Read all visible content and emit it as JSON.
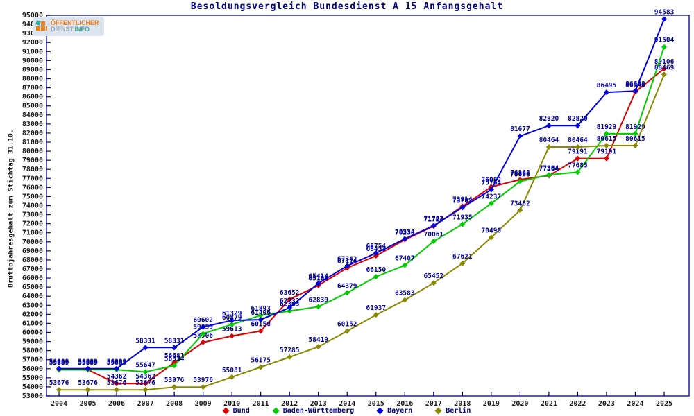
{
  "title": "Besoldungsvergleich Bundesdienst A 15 Anfangsgehalt",
  "logo": {
    "line1": "ÖFFENTLICHER",
    "line2a": "DIENST.",
    "line2b": "INFO"
  },
  "chart_data": {
    "type": "line",
    "title": "Besoldungsvergleich Bundesdienst A 15 Anfangsgehalt",
    "xlabel": "",
    "ylabel": "Bruttojahresgehalt zum Stichtag 31.10.",
    "ylim": [
      53000,
      95000
    ],
    "ytick_step": 1000,
    "grid": false,
    "legend_position": "bottom",
    "point_labels": true,
    "x": [
      2004,
      2005,
      2006,
      2007,
      2008,
      2009,
      2010,
      2011,
      2012,
      2013,
      2014,
      2015,
      2016,
      2017,
      2018,
      2019,
      2020,
      2021,
      2022,
      2023,
      2024,
      2025
    ],
    "series": [
      {
        "name": "Bund",
        "color": "#dd0000",
        "values": [
          55889,
          55889,
          54362,
          54362,
          56681,
          58906,
          59613,
          60150,
          63652,
          65186,
          67114,
          68453,
          70238,
          71724,
          73914,
          76062,
          76868,
          77304,
          79191,
          79191,
          86548,
          89106
        ]
      },
      {
        "name": "Baden-Württemberg",
        "color": "#00cc00",
        "values": [
          55889,
          55889,
          55889,
          55647,
          56334,
          59859,
          60879,
          61893,
          62365,
          62839,
          64379,
          66150,
          67407,
          70061,
          71935,
          74237,
          76668,
          77384,
          77685,
          81929,
          81929,
          91504
        ]
      },
      {
        "name": "Bayern",
        "color": "#0000dd",
        "values": [
          56009,
          56009,
          56009,
          58331,
          58331,
          60602,
          61329,
          61406,
          62732,
          65414,
          67342,
          68754,
          70334,
          71782,
          73782,
          75764,
          81677,
          82820,
          82820,
          86495,
          86648,
          94583
        ]
      },
      {
        "name": "Berlin",
        "color": "#8a8a00",
        "values": [
          53676,
          53676,
          53676,
          53676,
          53976,
          53976,
          55081,
          56175,
          57285,
          58419,
          60152,
          61937,
          63583,
          65452,
          67621,
          70490,
          73482,
          80464,
          80464,
          80615,
          80615,
          88469
        ]
      }
    ],
    "colors": {
      "border": "#000080",
      "tick_text": "#1a1a1a",
      "value_label": "#0000a0"
    }
  }
}
